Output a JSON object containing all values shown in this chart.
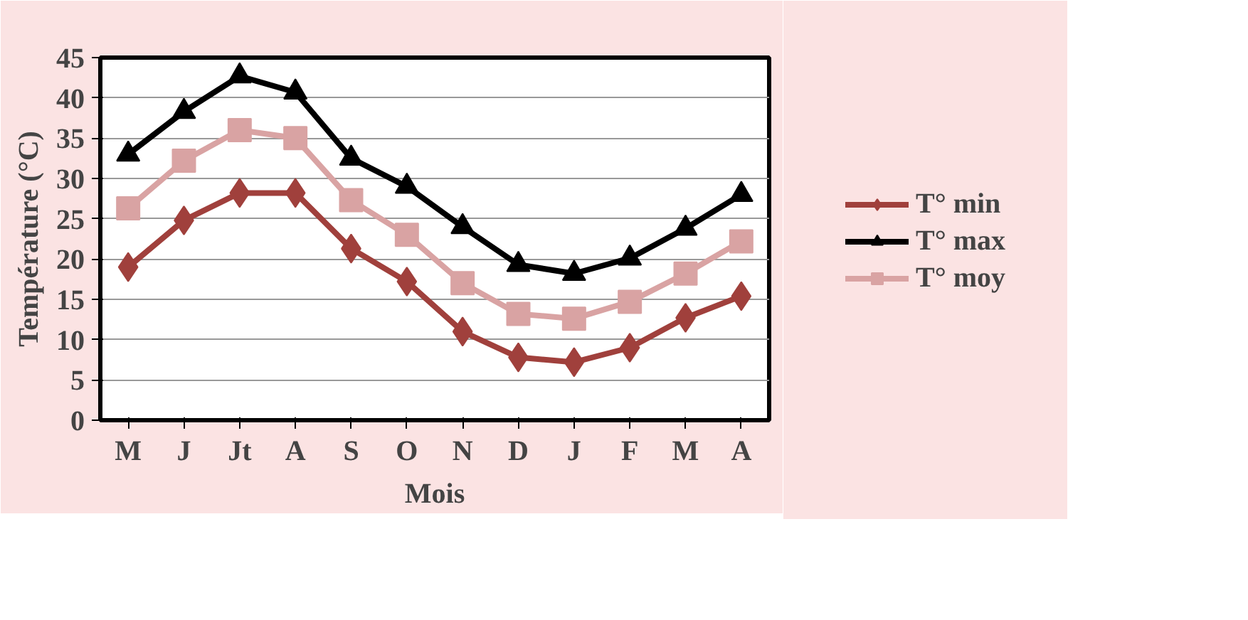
{
  "chart_data": {
    "type": "line",
    "xlabel": "Mois",
    "ylabel": "Température (°C)",
    "categories": [
      "M",
      "J",
      "Jt",
      "A",
      "S",
      "O",
      "N",
      "D",
      "J",
      "F",
      "M",
      "A"
    ],
    "series": [
      {
        "name": "T° min",
        "color": "#a0403c",
        "marker": "diamond",
        "values": [
          19,
          24.8,
          28.2,
          28.2,
          21.3,
          17.2,
          11,
          7.8,
          7.2,
          9,
          12.7,
          15.4
        ]
      },
      {
        "name": "T° max",
        "color": "#000000",
        "marker": "triangle",
        "values": [
          33,
          38.3,
          42.7,
          40.7,
          32.5,
          29,
          24,
          19.3,
          18.2,
          20.1,
          23.8,
          28
        ]
      },
      {
        "name": "T° moy",
        "color": "#d9a3a3",
        "marker": "square",
        "values": [
          26.3,
          32.2,
          36,
          35,
          27.3,
          23,
          17,
          13.2,
          12.6,
          14.7,
          18.2,
          22.2
        ]
      }
    ],
    "ylim": [
      0,
      45
    ],
    "yticks": [
      0,
      5,
      10,
      15,
      20,
      25,
      30,
      35,
      40,
      45
    ],
    "grid": "y",
    "legend": "right",
    "line_style": "solid"
  }
}
